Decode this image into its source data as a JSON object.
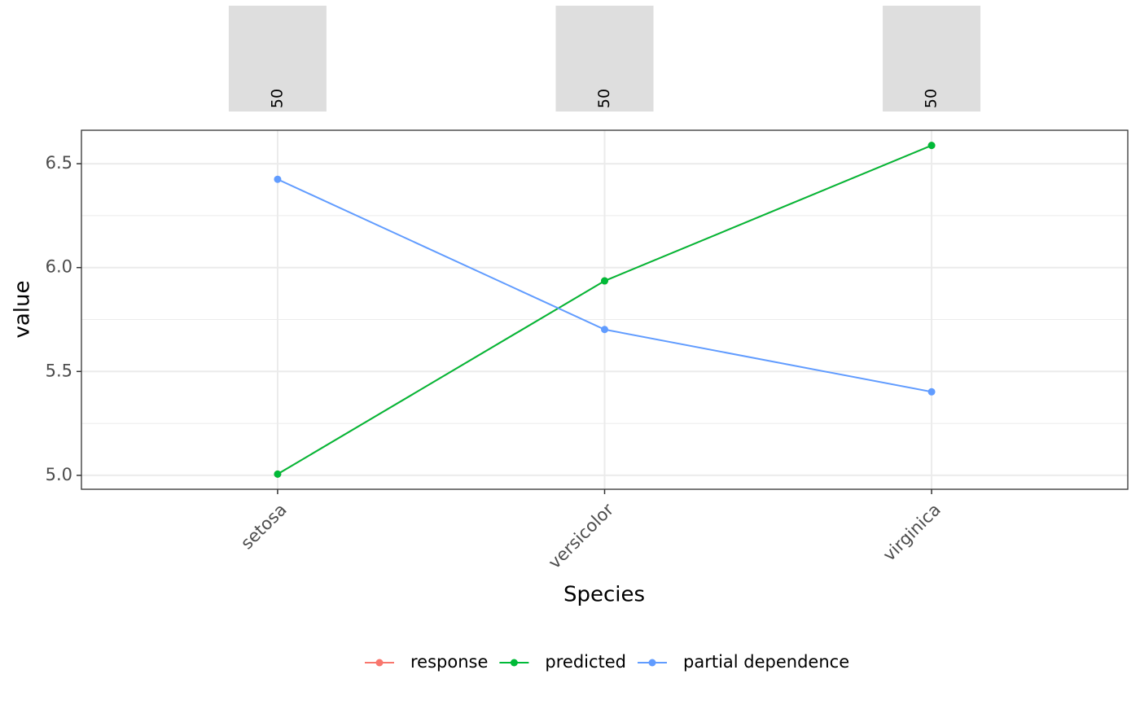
{
  "chart_data": {
    "type": "line",
    "categories": [
      "setosa",
      "versicolor",
      "virginica"
    ],
    "counts": [
      50,
      50,
      50
    ],
    "count_color": "#dedede",
    "series": [
      {
        "name": "response",
        "color": "#f8766d",
        "values": [
          5.006,
          5.936,
          6.588
        ]
      },
      {
        "name": "predicted",
        "color": "#00ba38",
        "values": [
          5.006,
          5.936,
          6.588
        ]
      },
      {
        "name": "partial dependence",
        "color": "#619cff",
        "values": [
          6.425,
          5.702,
          5.402
        ]
      }
    ],
    "x_label": "Species",
    "y_label": "value",
    "ylim": [
      4.933,
      6.661
    ],
    "yticks": [
      {
        "value": 5,
        "label": "5.0"
      },
      5.5,
      {
        "value": 6,
        "label": "6.0"
      },
      6.5
    ],
    "y_minor_ticks": [
      5.25,
      5.75,
      6.25
    ],
    "grid": true,
    "legend": "bottom"
  }
}
